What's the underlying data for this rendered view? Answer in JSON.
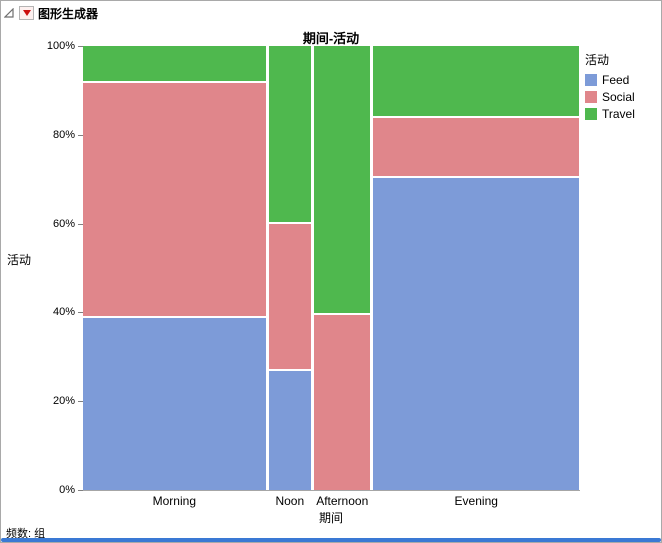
{
  "window": {
    "title": "图形生成器",
    "footer": "频数: 组"
  },
  "chart_data": {
    "type": "mosaic",
    "title": "期间-活动",
    "xlabel": "期间",
    "ylabel": "活动",
    "legend_title": "活动",
    "y_ticks": [
      "0%",
      "20%",
      "40%",
      "60%",
      "80%",
      "100%"
    ],
    "ylim": [
      0,
      100
    ],
    "grid": false,
    "legend_position": "right",
    "categories": [
      "Morning",
      "Noon",
      "Afternoon",
      "Evening"
    ],
    "column_width_fractions": [
      0.375,
      0.087,
      0.116,
      0.422
    ],
    "series": [
      {
        "name": "Feed",
        "color": "#7D9BD8",
        "values": [
          39,
          27,
          0,
          71
        ]
      },
      {
        "name": "Social",
        "color": "#E0868B",
        "values": [
          53,
          33,
          39.5,
          13
        ]
      },
      {
        "name": "Travel",
        "color": "#4FB84E",
        "values": [
          8,
          40,
          60.5,
          16
        ]
      }
    ]
  }
}
